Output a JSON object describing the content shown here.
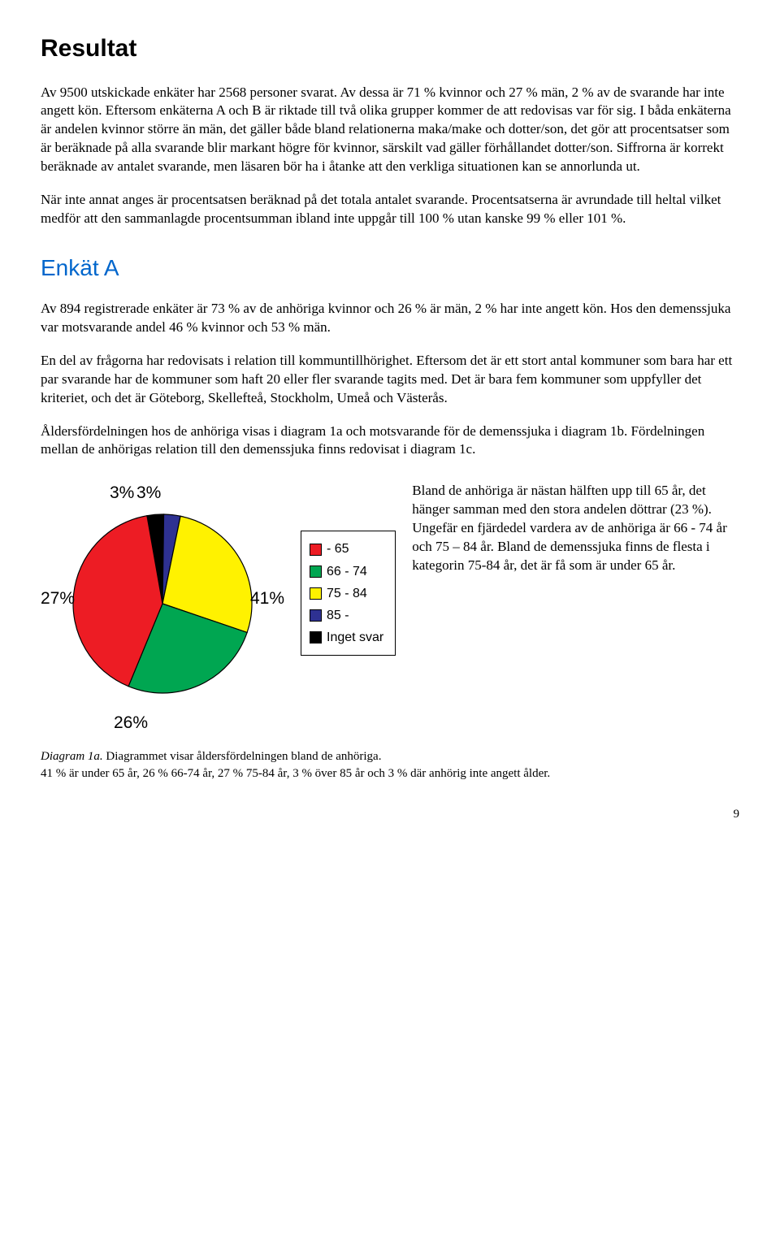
{
  "headings": {
    "resultat": "Resultat",
    "enkatA": "Enkät A",
    "enkatA_color": "#0066cc"
  },
  "paragraphs": {
    "p1": "Av 9500 utskickade enkäter har 2568 personer svarat. Av dessa är 71 % kvinnor och 27 % män, 2 % av de svarande har inte angett kön. Eftersom enkäterna A och B är riktade till två olika grupper kommer de att redovisas var för sig. I båda enkäterna är andelen kvinnor större än män, det gäller både bland relationerna maka/make och dotter/son, det gör att procentsatser som är beräknade på alla svarande blir markant högre för kvinnor, särskilt vad gäller förhållandet dotter/son. Siffrorna är korrekt beräknade av antalet svarande, men läsaren bör ha i åtanke att den verkliga situationen kan se annorlunda ut.",
    "p2": "När inte annat anges är procentsatsen beräknad på det totala antalet svarande. Procentsatserna är avrundade till heltal vilket medför att den sammanlagde procentsumman ibland inte uppgår till 100 % utan kanske 99 % eller 101 %.",
    "p3": "Av 894 registrerade enkäter är 73 % av de anhöriga kvinnor och 26 % är män, 2 % har inte angett kön. Hos den demenssjuka var motsvarande andel 46 % kvinnor och 53 % män.",
    "p4": "En del av frågorna har redovisats i relation till kommuntillhörighet. Eftersom det är ett stort antal kommuner som bara har ett par svarande har de kommuner som haft 20 eller fler svarande tagits med. Det är bara fem kommuner som uppfyller det kriteriet, och det är Göteborg, Skellefteå, Stockholm, Umeå och Västerås.",
    "p5": "Åldersfördelningen hos de anhöriga visas i diagram 1a och motsvarande för de demenssjuka i diagram 1b. Fördelningen mellan de anhörigas relation till den demenssjuka finns redovisat i diagram 1c.",
    "side": "Bland de anhöriga är nästan hälften upp till 65 år, det hänger samman med den stora andelen döttrar (23 %). Ungefär en fjärdedel vardera av de anhöriga är 66 - 74 år och 75 – 84 år. Bland de demenssjuka finns de flesta i kategorin 75-84 år, det är få som är under 65 år."
  },
  "chart": {
    "type": "pie",
    "slices": [
      {
        "label": "- 65",
        "value": 41,
        "color": "#ed1c24"
      },
      {
        "label": "66 - 74",
        "value": 26,
        "color": "#00a651"
      },
      {
        "label": "75 - 84",
        "value": 27,
        "color": "#fff200"
      },
      {
        "label": "85 -",
        "value": 3,
        "color": "#2e3192"
      },
      {
        "label": "Inget svar",
        "value": 3,
        "color": "#000000"
      }
    ],
    "stroke": "#000000",
    "stroke_width": 1.2,
    "radius": 110,
    "label_font": "Arial",
    "label_fontsize": 21,
    "pct_labels": {
      "p41": "41%",
      "p26": "26%",
      "p27": "27%",
      "p3a": "3%",
      "p3b": "3%"
    }
  },
  "legend": {
    "items": [
      {
        "label": "- 65",
        "color": "#ed1c24"
      },
      {
        "label": "66 - 74",
        "color": "#00a651"
      },
      {
        "label": "75 - 84",
        "color": "#fff200"
      },
      {
        "label": "85 -",
        "color": "#2e3192"
      },
      {
        "label": "Inget svar",
        "color": "#000000"
      }
    ]
  },
  "caption": {
    "title": "Diagram 1a.",
    "text1": " Diagrammet visar åldersfördelningen bland de anhöriga.",
    "text2": "41 % är under 65 år, 26 % 66-74 år, 27 % 75-84 år, 3 % över 85 år och 3 % där anhörig inte angett ålder."
  },
  "pagenum": "9"
}
